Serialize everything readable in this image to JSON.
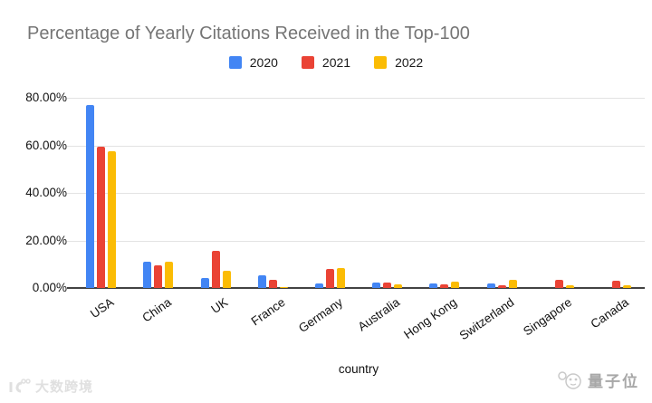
{
  "title": "Percentage of Yearly Citations Received in the Top-100",
  "chart_data": {
    "type": "bar",
    "categories": [
      "USA",
      "China",
      "UK",
      "France",
      "Germany",
      "Australia",
      "Hong Kong",
      "Switzerland",
      "Singapore",
      "Canada"
    ],
    "series": [
      {
        "name": "2020",
        "color": "#4285F4",
        "values": [
          77.0,
          11.0,
          4.2,
          5.5,
          1.8,
          2.2,
          1.8,
          1.8,
          0.0,
          0.0
        ]
      },
      {
        "name": "2021",
        "color": "#EA4335",
        "values": [
          59.5,
          9.5,
          15.5,
          3.4,
          7.9,
          2.4,
          1.7,
          1.0,
          3.5,
          3.0
        ]
      },
      {
        "name": "2022",
        "color": "#FBBC04",
        "values": [
          57.5,
          11.0,
          7.4,
          0.5,
          8.4,
          1.6,
          2.8,
          3.3,
          1.0,
          1.2
        ]
      }
    ],
    "xlabel": "country",
    "ylabel": "",
    "ylim": [
      0,
      80
    ],
    "y_ticks": [
      "80.00%",
      "60.00%",
      "40.00%",
      "20.00%",
      "0.00%"
    ],
    "grid": true,
    "legend_position": "top"
  },
  "colors": {
    "title_gray": "#757575",
    "gridline": "#e3e3e3",
    "axis_line": "#424242"
  },
  "watermarks": {
    "bottom_left": "大数跨境",
    "bottom_right": "量子位"
  }
}
